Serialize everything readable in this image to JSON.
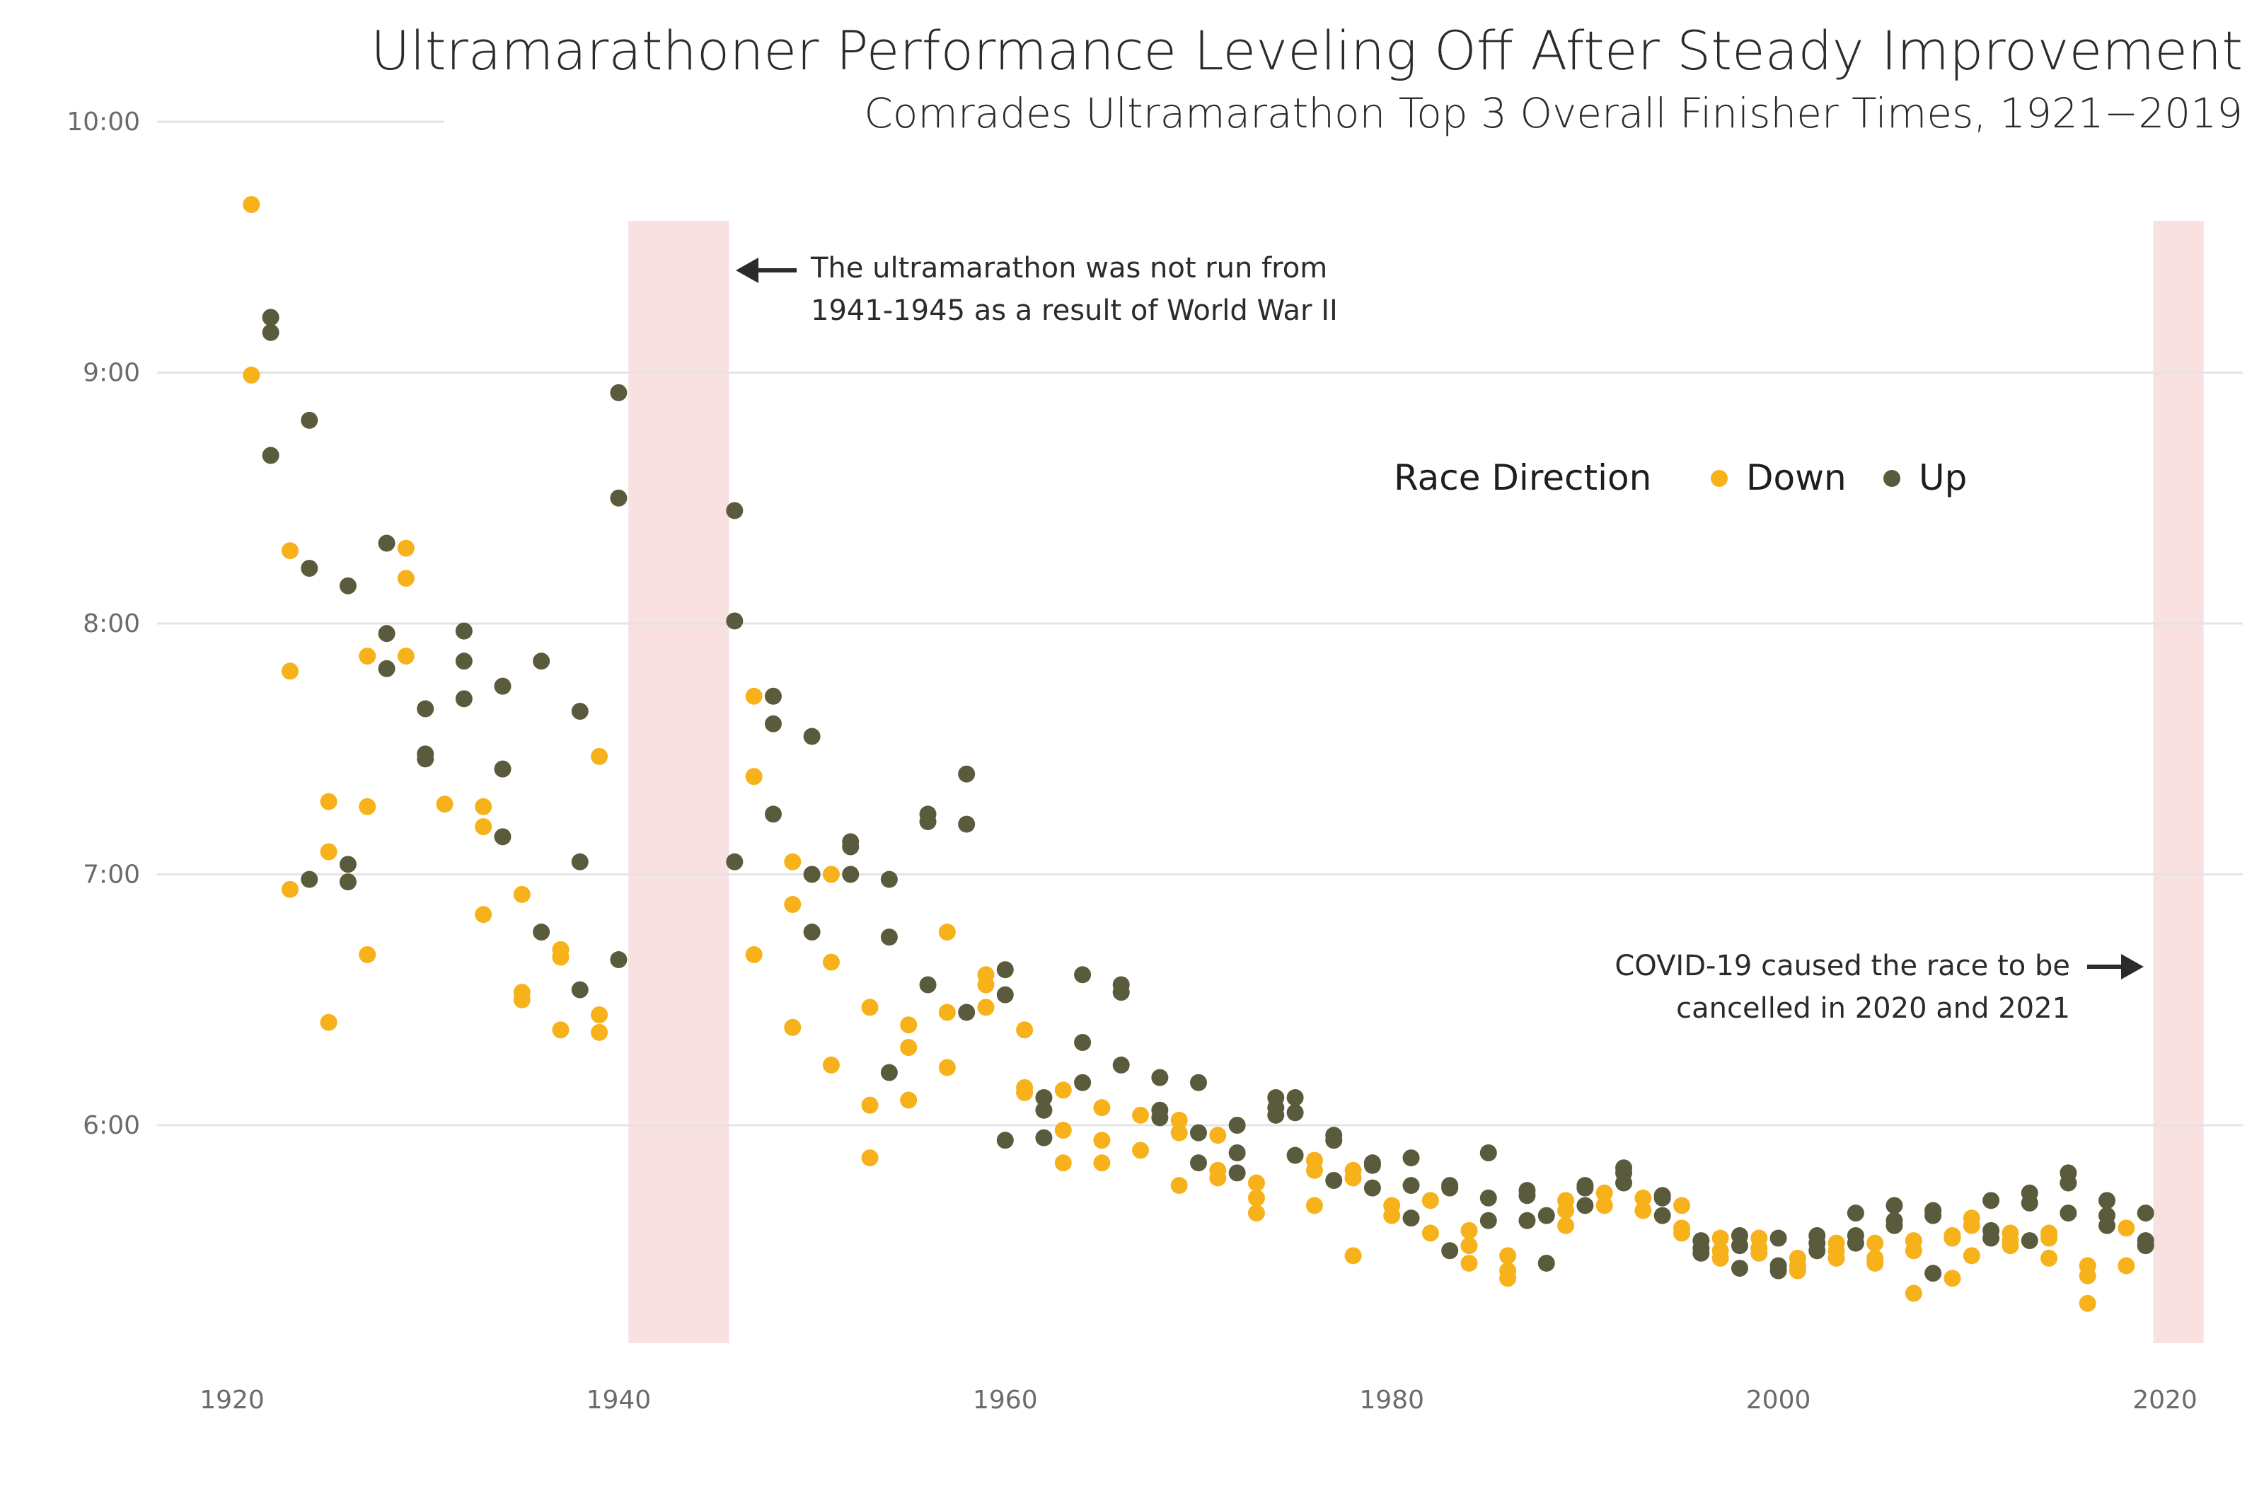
{
  "chart_data": {
    "type": "scatter",
    "title": "Ultramarathoner Performance Leveling Off After Steady Improvement",
    "subtitle": "Comrades Ultramarathon Top 3 Overall Finisher Times, 1921−2019",
    "xlabel": "",
    "ylabel": "",
    "xlim": [
      1916,
      2024
    ],
    "ylim": [
      5.1,
      10.0
    ],
    "x_ticks": [
      1920,
      1940,
      1960,
      1980,
      2000,
      2020
    ],
    "x_tick_labels": [
      "1920",
      "1940",
      "1960",
      "1980",
      "2000",
      "2020"
    ],
    "y_ticks": [
      6,
      7,
      8,
      9,
      10
    ],
    "y_tick_labels": [
      "6:00",
      "7:00",
      "8:00",
      "9:00",
      "10:00"
    ],
    "grid": "horizontal",
    "legend": {
      "title": "Race Direction",
      "position": "upper-right",
      "items": [
        {
          "label": "Down",
          "color": "#F7B21B"
        },
        {
          "label": "Up",
          "color": "#5A5B3C"
        }
      ]
    },
    "shaded_regions": [
      {
        "from": 1940.5,
        "to": 1945.7,
        "color": "#F9E0E1"
      },
      {
        "from": 2019.4,
        "to": 2022,
        "color": "#F9E0E1"
      }
    ],
    "annotations": [
      {
        "lines": [
          "The ultramarathon was not run from",
          "1941-1945 as a result of World War II"
        ],
        "arrow": "left"
      },
      {
        "lines": [
          "COVID-19 caused the race to be",
          "cancelled in 2020 and 2021"
        ],
        "arrow": "right"
      }
    ],
    "series": [
      {
        "name": "Down",
        "color": "#F7B21B",
        "points": [
          [
            1921,
            9.67
          ],
          [
            1921,
            8.99
          ],
          [
            1923,
            8.29
          ],
          [
            1923,
            7.81
          ],
          [
            1923,
            6.94
          ],
          [
            1925,
            7.29
          ],
          [
            1925,
            7.09
          ],
          [
            1925,
            6.41
          ],
          [
            1927,
            7.87
          ],
          [
            1927,
            7.27
          ],
          [
            1927,
            6.68
          ],
          [
            1929,
            8.3
          ],
          [
            1929,
            8.18
          ],
          [
            1929,
            7.87
          ],
          [
            1931,
            7.28
          ],
          [
            1933,
            7.27
          ],
          [
            1933,
            7.19
          ],
          [
            1933,
            6.84
          ],
          [
            1935,
            6.92
          ],
          [
            1935,
            6.53
          ],
          [
            1935,
            6.5
          ],
          [
            1937,
            6.7
          ],
          [
            1937,
            6.67
          ],
          [
            1937,
            6.38
          ],
          [
            1939,
            7.47
          ],
          [
            1939,
            6.44
          ],
          [
            1939,
            6.37
          ],
          [
            1947,
            7.71
          ],
          [
            1947,
            7.39
          ],
          [
            1947,
            6.68
          ],
          [
            1949,
            7.05
          ],
          [
            1949,
            6.88
          ],
          [
            1949,
            6.39
          ],
          [
            1951,
            7.0
          ],
          [
            1951,
            6.65
          ],
          [
            1951,
            6.24
          ],
          [
            1953,
            6.47
          ],
          [
            1953,
            6.08
          ],
          [
            1953,
            5.87
          ],
          [
            1955,
            6.4
          ],
          [
            1955,
            6.31
          ],
          [
            1955,
            6.1
          ],
          [
            1957,
            6.77
          ],
          [
            1957,
            6.45
          ],
          [
            1957,
            6.23
          ],
          [
            1959,
            6.6
          ],
          [
            1959,
            6.56
          ],
          [
            1959,
            6.47
          ],
          [
            1961,
            6.38
          ],
          [
            1961,
            6.15
          ],
          [
            1961,
            6.13
          ],
          [
            1963,
            6.14
          ],
          [
            1963,
            5.98
          ],
          [
            1963,
            5.85
          ],
          [
            1965,
            6.07
          ],
          [
            1965,
            5.94
          ],
          [
            1965,
            5.85
          ],
          [
            1967,
            6.04
          ],
          [
            1967,
            5.9
          ],
          [
            1969,
            6.02
          ],
          [
            1969,
            5.97
          ],
          [
            1969,
            5.76
          ],
          [
            1971,
            5.96
          ],
          [
            1971,
            5.82
          ],
          [
            1971,
            5.79
          ],
          [
            1973,
            5.77
          ],
          [
            1973,
            5.71
          ],
          [
            1973,
            5.65
          ],
          [
            1976,
            5.86
          ],
          [
            1976,
            5.82
          ],
          [
            1976,
            5.68
          ],
          [
            1978,
            5.82
          ],
          [
            1978,
            5.79
          ],
          [
            1978,
            5.48
          ],
          [
            1980,
            5.68
          ],
          [
            1980,
            5.64
          ],
          [
            1982,
            5.7
          ],
          [
            1982,
            5.57
          ],
          [
            1984,
            5.58
          ],
          [
            1984,
            5.52
          ],
          [
            1984,
            5.45
          ],
          [
            1986,
            5.48
          ],
          [
            1986,
            5.42
          ],
          [
            1986,
            5.39
          ],
          [
            1989,
            5.7
          ],
          [
            1989,
            5.66
          ],
          [
            1989,
            5.6
          ],
          [
            1991,
            5.73
          ],
          [
            1991,
            5.68
          ],
          [
            1993,
            5.71
          ],
          [
            1993,
            5.66
          ],
          [
            1995,
            5.68
          ],
          [
            1995,
            5.59
          ],
          [
            1995,
            5.57
          ],
          [
            1997,
            5.55
          ],
          [
            1997,
            5.5
          ],
          [
            1997,
            5.47
          ],
          [
            1999,
            5.55
          ],
          [
            1999,
            5.51
          ],
          [
            1999,
            5.49
          ],
          [
            2001,
            5.47
          ],
          [
            2001,
            5.44
          ],
          [
            2001,
            5.42
          ],
          [
            2003,
            5.53
          ],
          [
            2003,
            5.5
          ],
          [
            2003,
            5.47
          ],
          [
            2005,
            5.53
          ],
          [
            2005,
            5.47
          ],
          [
            2005,
            5.45
          ],
          [
            2007,
            5.54
          ],
          [
            2007,
            5.5
          ],
          [
            2007,
            5.33
          ],
          [
            2009,
            5.56
          ],
          [
            2009,
            5.55
          ],
          [
            2009,
            5.39
          ],
          [
            2010,
            5.63
          ],
          [
            2010,
            5.6
          ],
          [
            2010,
            5.48
          ],
          [
            2012,
            5.57
          ],
          [
            2012,
            5.54
          ],
          [
            2012,
            5.52
          ],
          [
            2014,
            5.57
          ],
          [
            2014,
            5.55
          ],
          [
            2014,
            5.47
          ],
          [
            2016,
            5.44
          ],
          [
            2016,
            5.4
          ],
          [
            2016,
            5.29
          ],
          [
            2018,
            5.59
          ],
          [
            2018,
            5.44
          ]
        ]
      },
      {
        "name": "Up",
        "color": "#5A5B3C",
        "points": [
          [
            1922,
            9.22
          ],
          [
            1922,
            9.16
          ],
          [
            1922,
            8.67
          ],
          [
            1924,
            8.81
          ],
          [
            1924,
            8.22
          ],
          [
            1924,
            6.98
          ],
          [
            1926,
            8.15
          ],
          [
            1926,
            7.04
          ],
          [
            1926,
            6.97
          ],
          [
            1928,
            8.32
          ],
          [
            1928,
            7.96
          ],
          [
            1928,
            7.82
          ],
          [
            1930,
            7.66
          ],
          [
            1930,
            7.48
          ],
          [
            1930,
            7.46
          ],
          [
            1932,
            7.97
          ],
          [
            1932,
            7.85
          ],
          [
            1932,
            7.7
          ],
          [
            1934,
            7.75
          ],
          [
            1934,
            7.42
          ],
          [
            1934,
            7.15
          ],
          [
            1936,
            7.85
          ],
          [
            1936,
            6.77
          ],
          [
            1938,
            7.65
          ],
          [
            1938,
            7.05
          ],
          [
            1938,
            6.54
          ],
          [
            1940,
            8.92
          ],
          [
            1940,
            8.5
          ],
          [
            1940,
            6.66
          ],
          [
            1946,
            8.45
          ],
          [
            1946,
            8.01
          ],
          [
            1946,
            7.05
          ],
          [
            1948,
            7.71
          ],
          [
            1948,
            7.6
          ],
          [
            1948,
            7.24
          ],
          [
            1950,
            7.55
          ],
          [
            1950,
            7.0
          ],
          [
            1950,
            6.77
          ],
          [
            1952,
            7.13
          ],
          [
            1952,
            7.11
          ],
          [
            1952,
            7.0
          ],
          [
            1954,
            6.98
          ],
          [
            1954,
            6.75
          ],
          [
            1954,
            6.21
          ],
          [
            1956,
            7.24
          ],
          [
            1956,
            7.21
          ],
          [
            1956,
            6.56
          ],
          [
            1958,
            7.4
          ],
          [
            1958,
            7.2
          ],
          [
            1958,
            6.45
          ],
          [
            1960,
            6.62
          ],
          [
            1960,
            6.52
          ],
          [
            1960,
            5.94
          ],
          [
            1962,
            6.11
          ],
          [
            1962,
            6.06
          ],
          [
            1962,
            5.95
          ],
          [
            1964,
            6.6
          ],
          [
            1964,
            6.33
          ],
          [
            1964,
            6.17
          ],
          [
            1966,
            6.56
          ],
          [
            1966,
            6.53
          ],
          [
            1966,
            6.24
          ],
          [
            1968,
            6.19
          ],
          [
            1968,
            6.06
          ],
          [
            1968,
            6.03
          ],
          [
            1970,
            6.17
          ],
          [
            1970,
            5.97
          ],
          [
            1970,
            5.85
          ],
          [
            1972,
            6.0
          ],
          [
            1972,
            5.89
          ],
          [
            1972,
            5.81
          ],
          [
            1974,
            6.11
          ],
          [
            1974,
            6.07
          ],
          [
            1974,
            6.04
          ],
          [
            1975,
            6.11
          ],
          [
            1975,
            6.05
          ],
          [
            1975,
            5.88
          ],
          [
            1977,
            5.96
          ],
          [
            1977,
            5.94
          ],
          [
            1977,
            5.78
          ],
          [
            1979,
            5.85
          ],
          [
            1979,
            5.84
          ],
          [
            1979,
            5.75
          ],
          [
            1981,
            5.87
          ],
          [
            1981,
            5.76
          ],
          [
            1981,
            5.63
          ],
          [
            1983,
            5.76
          ],
          [
            1983,
            5.75
          ],
          [
            1983,
            5.5
          ],
          [
            1985,
            5.89
          ],
          [
            1985,
            5.71
          ],
          [
            1985,
            5.62
          ],
          [
            1987,
            5.74
          ],
          [
            1987,
            5.72
          ],
          [
            1987,
            5.62
          ],
          [
            1988,
            5.64
          ],
          [
            1988,
            5.45
          ],
          [
            1990,
            5.76
          ],
          [
            1990,
            5.75
          ],
          [
            1990,
            5.68
          ],
          [
            1992,
            5.83
          ],
          [
            1992,
            5.81
          ],
          [
            1992,
            5.77
          ],
          [
            1994,
            5.72
          ],
          [
            1994,
            5.71
          ],
          [
            1994,
            5.64
          ],
          [
            1996,
            5.54
          ],
          [
            1996,
            5.51
          ],
          [
            1996,
            5.49
          ],
          [
            1998,
            5.56
          ],
          [
            1998,
            5.52
          ],
          [
            1998,
            5.43
          ],
          [
            2000,
            5.55
          ],
          [
            2000,
            5.44
          ],
          [
            2000,
            5.42
          ],
          [
            2002,
            5.56
          ],
          [
            2002,
            5.53
          ],
          [
            2002,
            5.5
          ],
          [
            2004,
            5.65
          ],
          [
            2004,
            5.56
          ],
          [
            2004,
            5.53
          ],
          [
            2006,
            5.68
          ],
          [
            2006,
            5.62
          ],
          [
            2006,
            5.6
          ],
          [
            2008,
            5.66
          ],
          [
            2008,
            5.64
          ],
          [
            2008,
            5.41
          ],
          [
            2011,
            5.7
          ],
          [
            2011,
            5.58
          ],
          [
            2011,
            5.55
          ],
          [
            2013,
            5.73
          ],
          [
            2013,
            5.69
          ],
          [
            2013,
            5.54
          ],
          [
            2015,
            5.81
          ],
          [
            2015,
            5.77
          ],
          [
            2015,
            5.65
          ],
          [
            2017,
            5.7
          ],
          [
            2017,
            5.64
          ],
          [
            2017,
            5.6
          ],
          [
            2019,
            5.65
          ],
          [
            2019,
            5.54
          ],
          [
            2019,
            5.52
          ]
        ]
      }
    ]
  }
}
